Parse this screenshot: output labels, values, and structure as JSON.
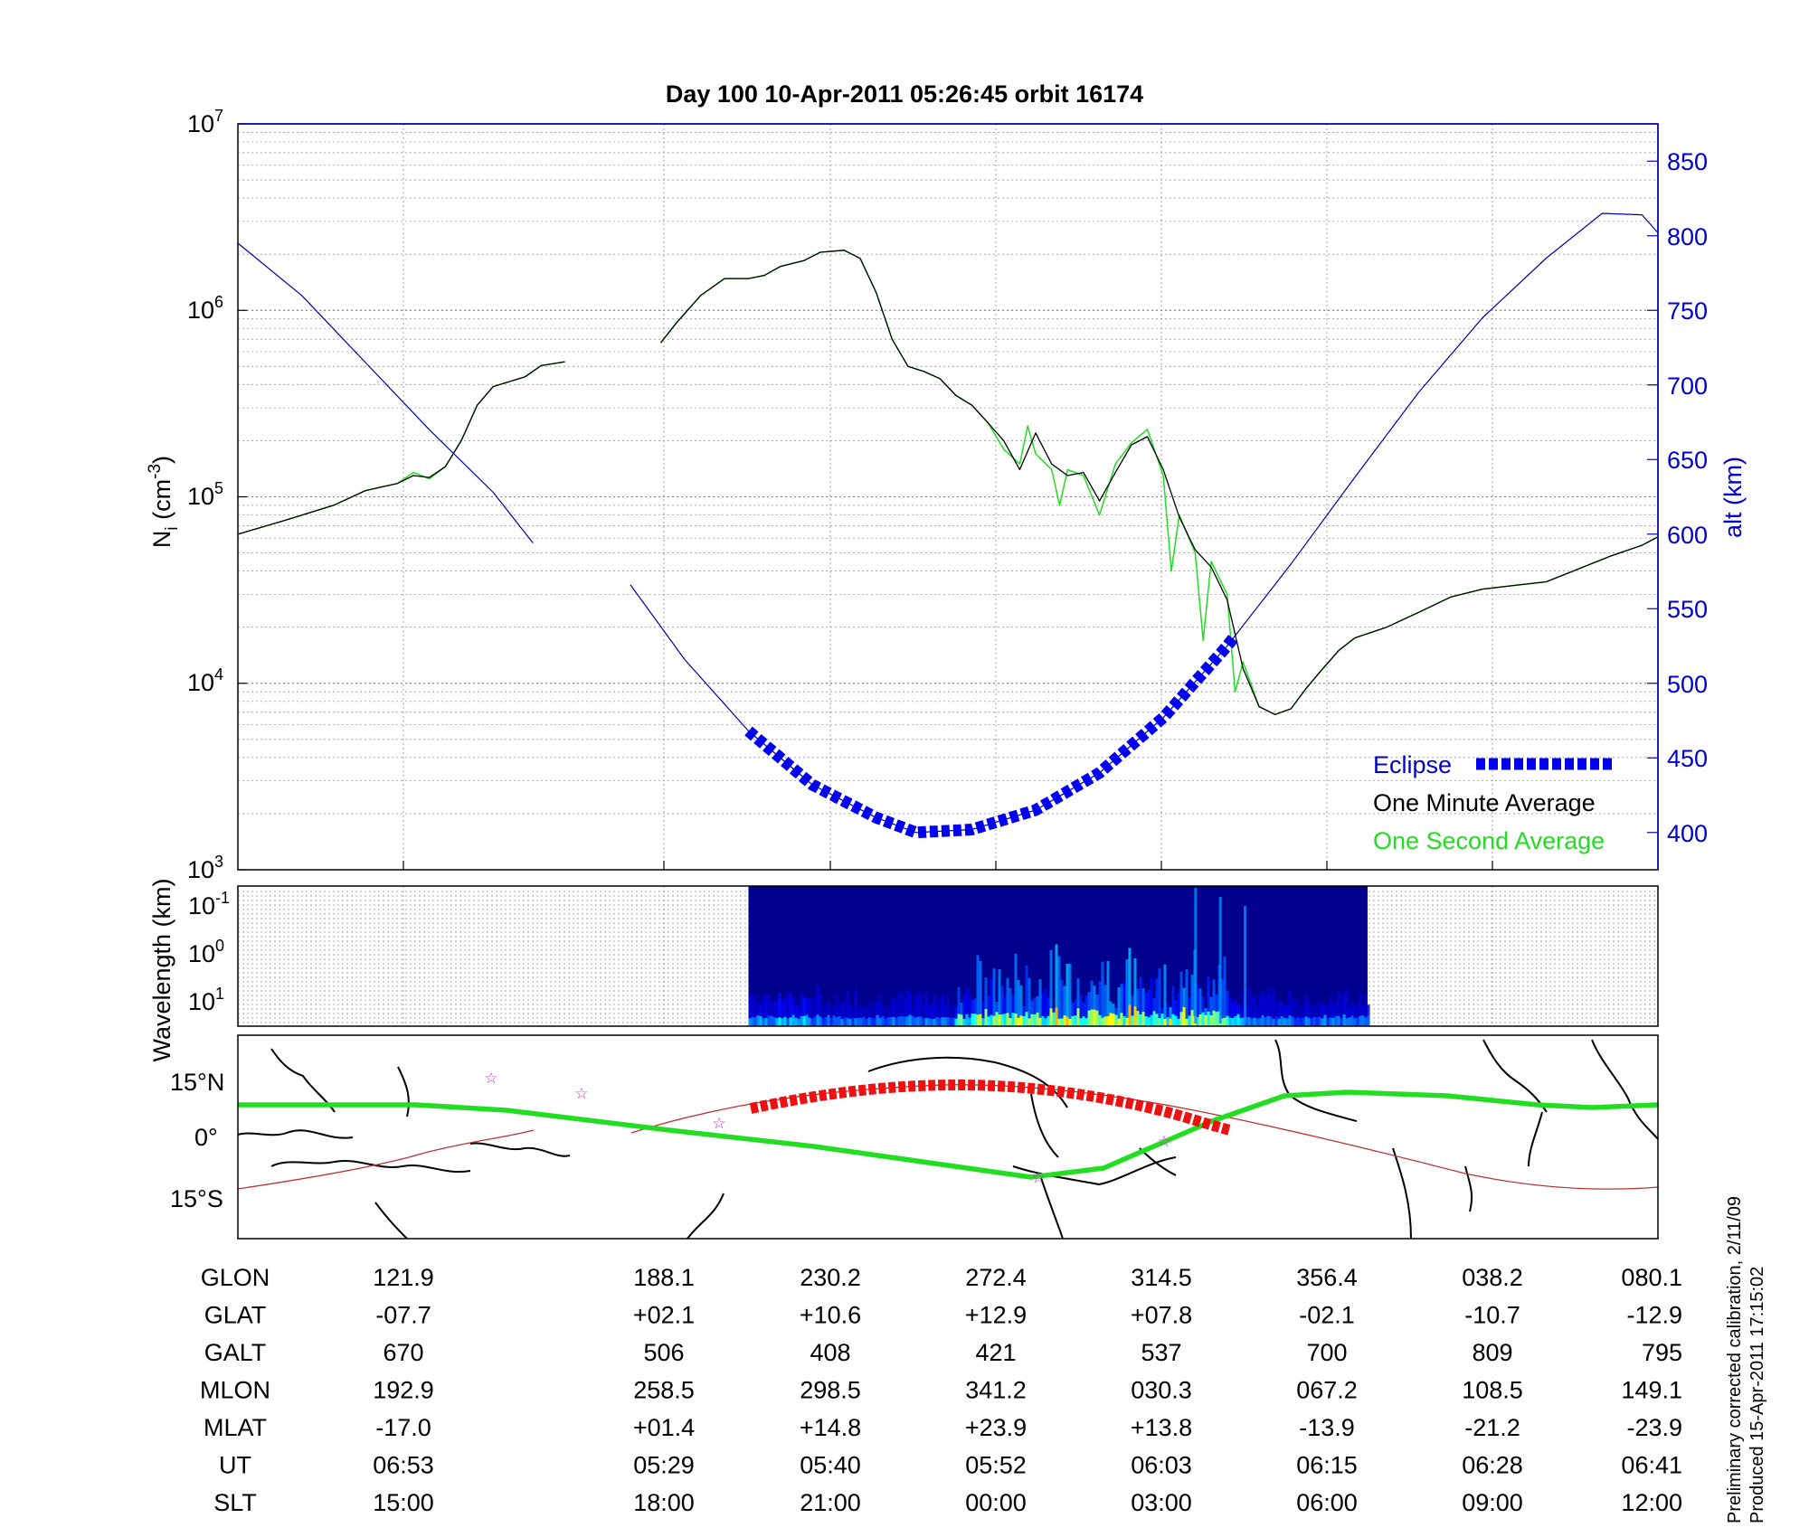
{
  "title": "Day 100  10-Apr-2011 05:26:45   orbit 16174",
  "chart_data": [
    {
      "type": "line",
      "name": "ion-density-panel",
      "ylabel_left": "Ni (cm-3)",
      "ylabel_left_parts": {
        "base": "N",
        "sub": "i",
        "open": " (cm",
        "sup": "-3",
        "close": ")"
      },
      "yscale_left": "log",
      "ylim_left": [
        1000,
        10000000
      ],
      "left_ticks": [
        {
          "base": "10",
          "exp": "3",
          "value": 1000
        },
        {
          "base": "10",
          "exp": "4",
          "value": 10000
        },
        {
          "base": "10",
          "exp": "5",
          "value": 100000
        },
        {
          "base": "10",
          "exp": "6",
          "value": 1000000
        },
        {
          "base": "10",
          "exp": "7",
          "value": 10000000
        }
      ],
      "ylabel_right": "alt (km)",
      "ylim_right": [
        375,
        875
      ],
      "right_ticks": [
        "400",
        "450",
        "500",
        "550",
        "600",
        "650",
        "700",
        "750",
        "800",
        "850"
      ],
      "grid": true,
      "legend_position": "bottom-right",
      "legend": [
        {
          "label": "Eclipse",
          "color": "#0000ee"
        },
        {
          "label": "One Minute Average",
          "color": "#000000"
        },
        {
          "label": "One Second Average",
          "color": "#22dd22"
        }
      ],
      "series": [
        {
          "name": "One Minute Average",
          "color": "#000000",
          "note": "density in cm^-3 vs minutes-after-05:26:45 (approx.)",
          "segments": [
            [
              [
                0,
                63000
              ],
              [
                3,
                75000
              ],
              [
                6,
                90000
              ],
              [
                8,
                108000
              ],
              [
                10,
                118000
              ],
              [
                11,
                130000
              ],
              [
                12,
                127000
              ],
              [
                13,
                145000
              ],
              [
                14,
                200000
              ],
              [
                15,
                310000
              ],
              [
                16,
                390000
              ],
              [
                18,
                440000
              ],
              [
                19,
                505000
              ],
              [
                20.5,
                530000
              ]
            ],
            [
              [
                26.5,
                670000
              ],
              [
                27.5,
                860000
              ],
              [
                29,
                1200000
              ],
              [
                30.5,
                1480000
              ],
              [
                32,
                1480000
              ],
              [
                33,
                1540000
              ],
              [
                34,
                1720000
              ],
              [
                35.5,
                1850000
              ],
              [
                36.5,
                2050000
              ],
              [
                38,
                2100000
              ],
              [
                39,
                1900000
              ],
              [
                40,
                1250000
              ],
              [
                41,
                700000
              ],
              [
                42,
                500000
              ],
              [
                43,
                470000
              ],
              [
                44,
                430000
              ],
              [
                45,
                350000
              ],
              [
                46,
                310000
              ],
              [
                47,
                250000
              ],
              [
                48,
                200000
              ],
              [
                49,
                140000
              ],
              [
                50,
                220000
              ],
              [
                51,
                150000
              ],
              [
                52,
                130000
              ],
              [
                53,
                135000
              ],
              [
                54,
                95000
              ],
              [
                55,
                135000
              ],
              [
                56,
                190000
              ],
              [
                57,
                210000
              ],
              [
                58,
                140000
              ],
              [
                59,
                78000
              ],
              [
                60,
                52000
              ],
              [
                61,
                42000
              ],
              [
                62,
                28000
              ],
              [
                63,
                12000
              ],
              [
                64,
                7500
              ],
              [
                65,
                6800
              ],
              [
                66,
                7300
              ],
              [
                67,
                9500
              ],
              [
                68,
                12000
              ],
              [
                69,
                15000
              ],
              [
                70,
                17500
              ],
              [
                72,
                20000
              ],
              [
                74,
                24000
              ],
              [
                76,
                29000
              ],
              [
                78,
                32000
              ],
              [
                80,
                33500
              ],
              [
                82,
                35000
              ],
              [
                84,
                41000
              ],
              [
                86,
                48000
              ],
              [
                88,
                55000
              ],
              [
                89,
                61000
              ]
            ]
          ]
        },
        {
          "name": "One Second Average",
          "color": "#22dd22",
          "note": "tracks the minute average with extra spikes",
          "segments": [
            [
              [
                0,
                63000
              ],
              [
                3,
                75000
              ],
              [
                6,
                90000
              ],
              [
                8,
                108000
              ],
              [
                10,
                118000
              ],
              [
                11,
                135000
              ],
              [
                12,
                125000
              ],
              [
                13,
                145000
              ],
              [
                14,
                200000
              ],
              [
                15,
                310000
              ],
              [
                16,
                390000
              ],
              [
                18,
                440000
              ],
              [
                19,
                505000
              ],
              [
                20.5,
                530000
              ]
            ],
            [
              [
                26.5,
                670000
              ],
              [
                27.5,
                860000
              ],
              [
                29,
                1200000
              ],
              [
                30.5,
                1480000
              ],
              [
                32,
                1480000
              ],
              [
                33,
                1540000
              ],
              [
                34,
                1720000
              ],
              [
                35.5,
                1850000
              ],
              [
                36.5,
                2050000
              ],
              [
                38,
                2100000
              ],
              [
                39,
                1900000
              ],
              [
                40,
                1250000
              ],
              [
                41,
                700000
              ],
              [
                42,
                500000
              ],
              [
                43,
                470000
              ],
              [
                44,
                430000
              ],
              [
                45,
                350000
              ],
              [
                46,
                310000
              ],
              [
                47,
                250000
              ],
              [
                48,
                180000
              ],
              [
                49,
                150000
              ],
              [
                49.5,
                240000
              ],
              [
                50,
                170000
              ],
              [
                51,
                140000
              ],
              [
                51.5,
                90000
              ],
              [
                52,
                140000
              ],
              [
                53,
                130000
              ],
              [
                54,
                80000
              ],
              [
                55,
                150000
              ],
              [
                56,
                195000
              ],
              [
                57,
                230000
              ],
              [
                58,
                130000
              ],
              [
                58.5,
                40000
              ],
              [
                59,
                80000
              ],
              [
                60,
                50000
              ],
              [
                60.5,
                17000
              ],
              [
                61,
                45000
              ],
              [
                62,
                30000
              ],
              [
                62.5,
                9000
              ],
              [
                63,
                13000
              ],
              [
                64,
                7500
              ],
              [
                65,
                6800
              ],
              [
                66,
                7300
              ],
              [
                67,
                9500
              ],
              [
                68,
                12000
              ],
              [
                69,
                15000
              ],
              [
                70,
                17500
              ],
              [
                72,
                20000
              ],
              [
                74,
                24000
              ],
              [
                76,
                29000
              ],
              [
                78,
                32000
              ],
              [
                80,
                33500
              ],
              [
                82,
                35000
              ],
              [
                84,
                41000
              ],
              [
                86,
                48000
              ],
              [
                88,
                55000
              ],
              [
                89,
                61000
              ]
            ]
          ]
        },
        {
          "name": "alt (km)",
          "axis": "right",
          "color": "#0000aa",
          "segments": [
            [
              [
                0,
                795
              ],
              [
                4,
                760
              ],
              [
                8,
                715
              ],
              [
                12,
                670
              ],
              [
                16,
                628
              ],
              [
                18.5,
                594
              ]
            ],
            [
              [
                24.6,
                566
              ],
              [
                28,
                516
              ],
              [
                32,
                468
              ],
              [
                36,
                432
              ],
              [
                40,
                410
              ],
              [
                42.5,
                400
              ],
              [
                46,
                402
              ],
              [
                50,
                415
              ],
              [
                54,
                440
              ],
              [
                58,
                477
              ],
              [
                62,
                525
              ],
              [
                66,
                580
              ],
              [
                70,
                638
              ],
              [
                74,
                695
              ],
              [
                78,
                745
              ],
              [
                82,
                785
              ],
              [
                85.5,
                815
              ],
              [
                88,
                814
              ],
              [
                89,
                802
              ]
            ]
          ]
        }
      ],
      "eclipse": {
        "color": "#0000ee",
        "x_range": [
          32.0,
          62.5
        ]
      }
    },
    {
      "type": "heatmap",
      "name": "wavelength-spectrogram",
      "ylabel": "Wavelength (km)",
      "ytick_labels": [
        {
          "base": "10",
          "exp": "-1"
        },
        {
          "base": "10",
          "exp": "0"
        },
        {
          "base": "10",
          "exp": "1"
        }
      ],
      "x_range_minutes": [
        32.0,
        70.8
      ],
      "colormap": "jet",
      "note": "power concentrated at long wavelengths (bottom), strongest between ~45 and ~62 minutes"
    },
    {
      "type": "line",
      "name": "ground-track-map",
      "ytick_labels": [
        "15°N",
        "0°",
        "15°S"
      ],
      "series": [
        {
          "name": "satellite ground track",
          "color": "#bb3333"
        },
        {
          "name": "magnetic equator",
          "color": "#22dd22"
        },
        {
          "name": "eclipse portion",
          "color": "#ee1111"
        }
      ]
    }
  ],
  "table": {
    "rows": [
      {
        "label": "GLON",
        "values": [
          "121.9",
          "188.1",
          "230.2",
          "272.4",
          "314.5",
          "356.4",
          "038.2",
          "080.1"
        ]
      },
      {
        "label": "GLAT",
        "values": [
          "-07.7",
          "+02.1",
          "+10.6",
          "+12.9",
          "+07.8",
          "-02.1",
          "-10.7",
          "-12.9"
        ]
      },
      {
        "label": "GALT",
        "values": [
          "670",
          "506",
          "408",
          "421",
          "537",
          "700",
          "809",
          "795"
        ]
      },
      {
        "label": "MLON",
        "values": [
          "192.9",
          "258.5",
          "298.5",
          "341.2",
          "030.3",
          "067.2",
          "108.5",
          "149.1"
        ]
      },
      {
        "label": "MLAT",
        "values": [
          "-17.0",
          "+01.4",
          "+14.8",
          "+23.9",
          "+13.8",
          "-13.9",
          "-21.2",
          "-23.9"
        ]
      },
      {
        "label": "UT",
        "values": [
          "06:53",
          "05:29",
          "05:40",
          "05:52",
          "06:03",
          "06:15",
          "06:28",
          "06:41"
        ]
      },
      {
        "label": "SLT",
        "values": [
          "15:00",
          "18:00",
          "21:00",
          "00:00",
          "03:00",
          "06:00",
          "09:00",
          "12:00"
        ]
      }
    ]
  },
  "notes": [
    "Preliminary corrected calibration, 2/11/09",
    "Produced 15-Apr-2011 17:15:02"
  ]
}
